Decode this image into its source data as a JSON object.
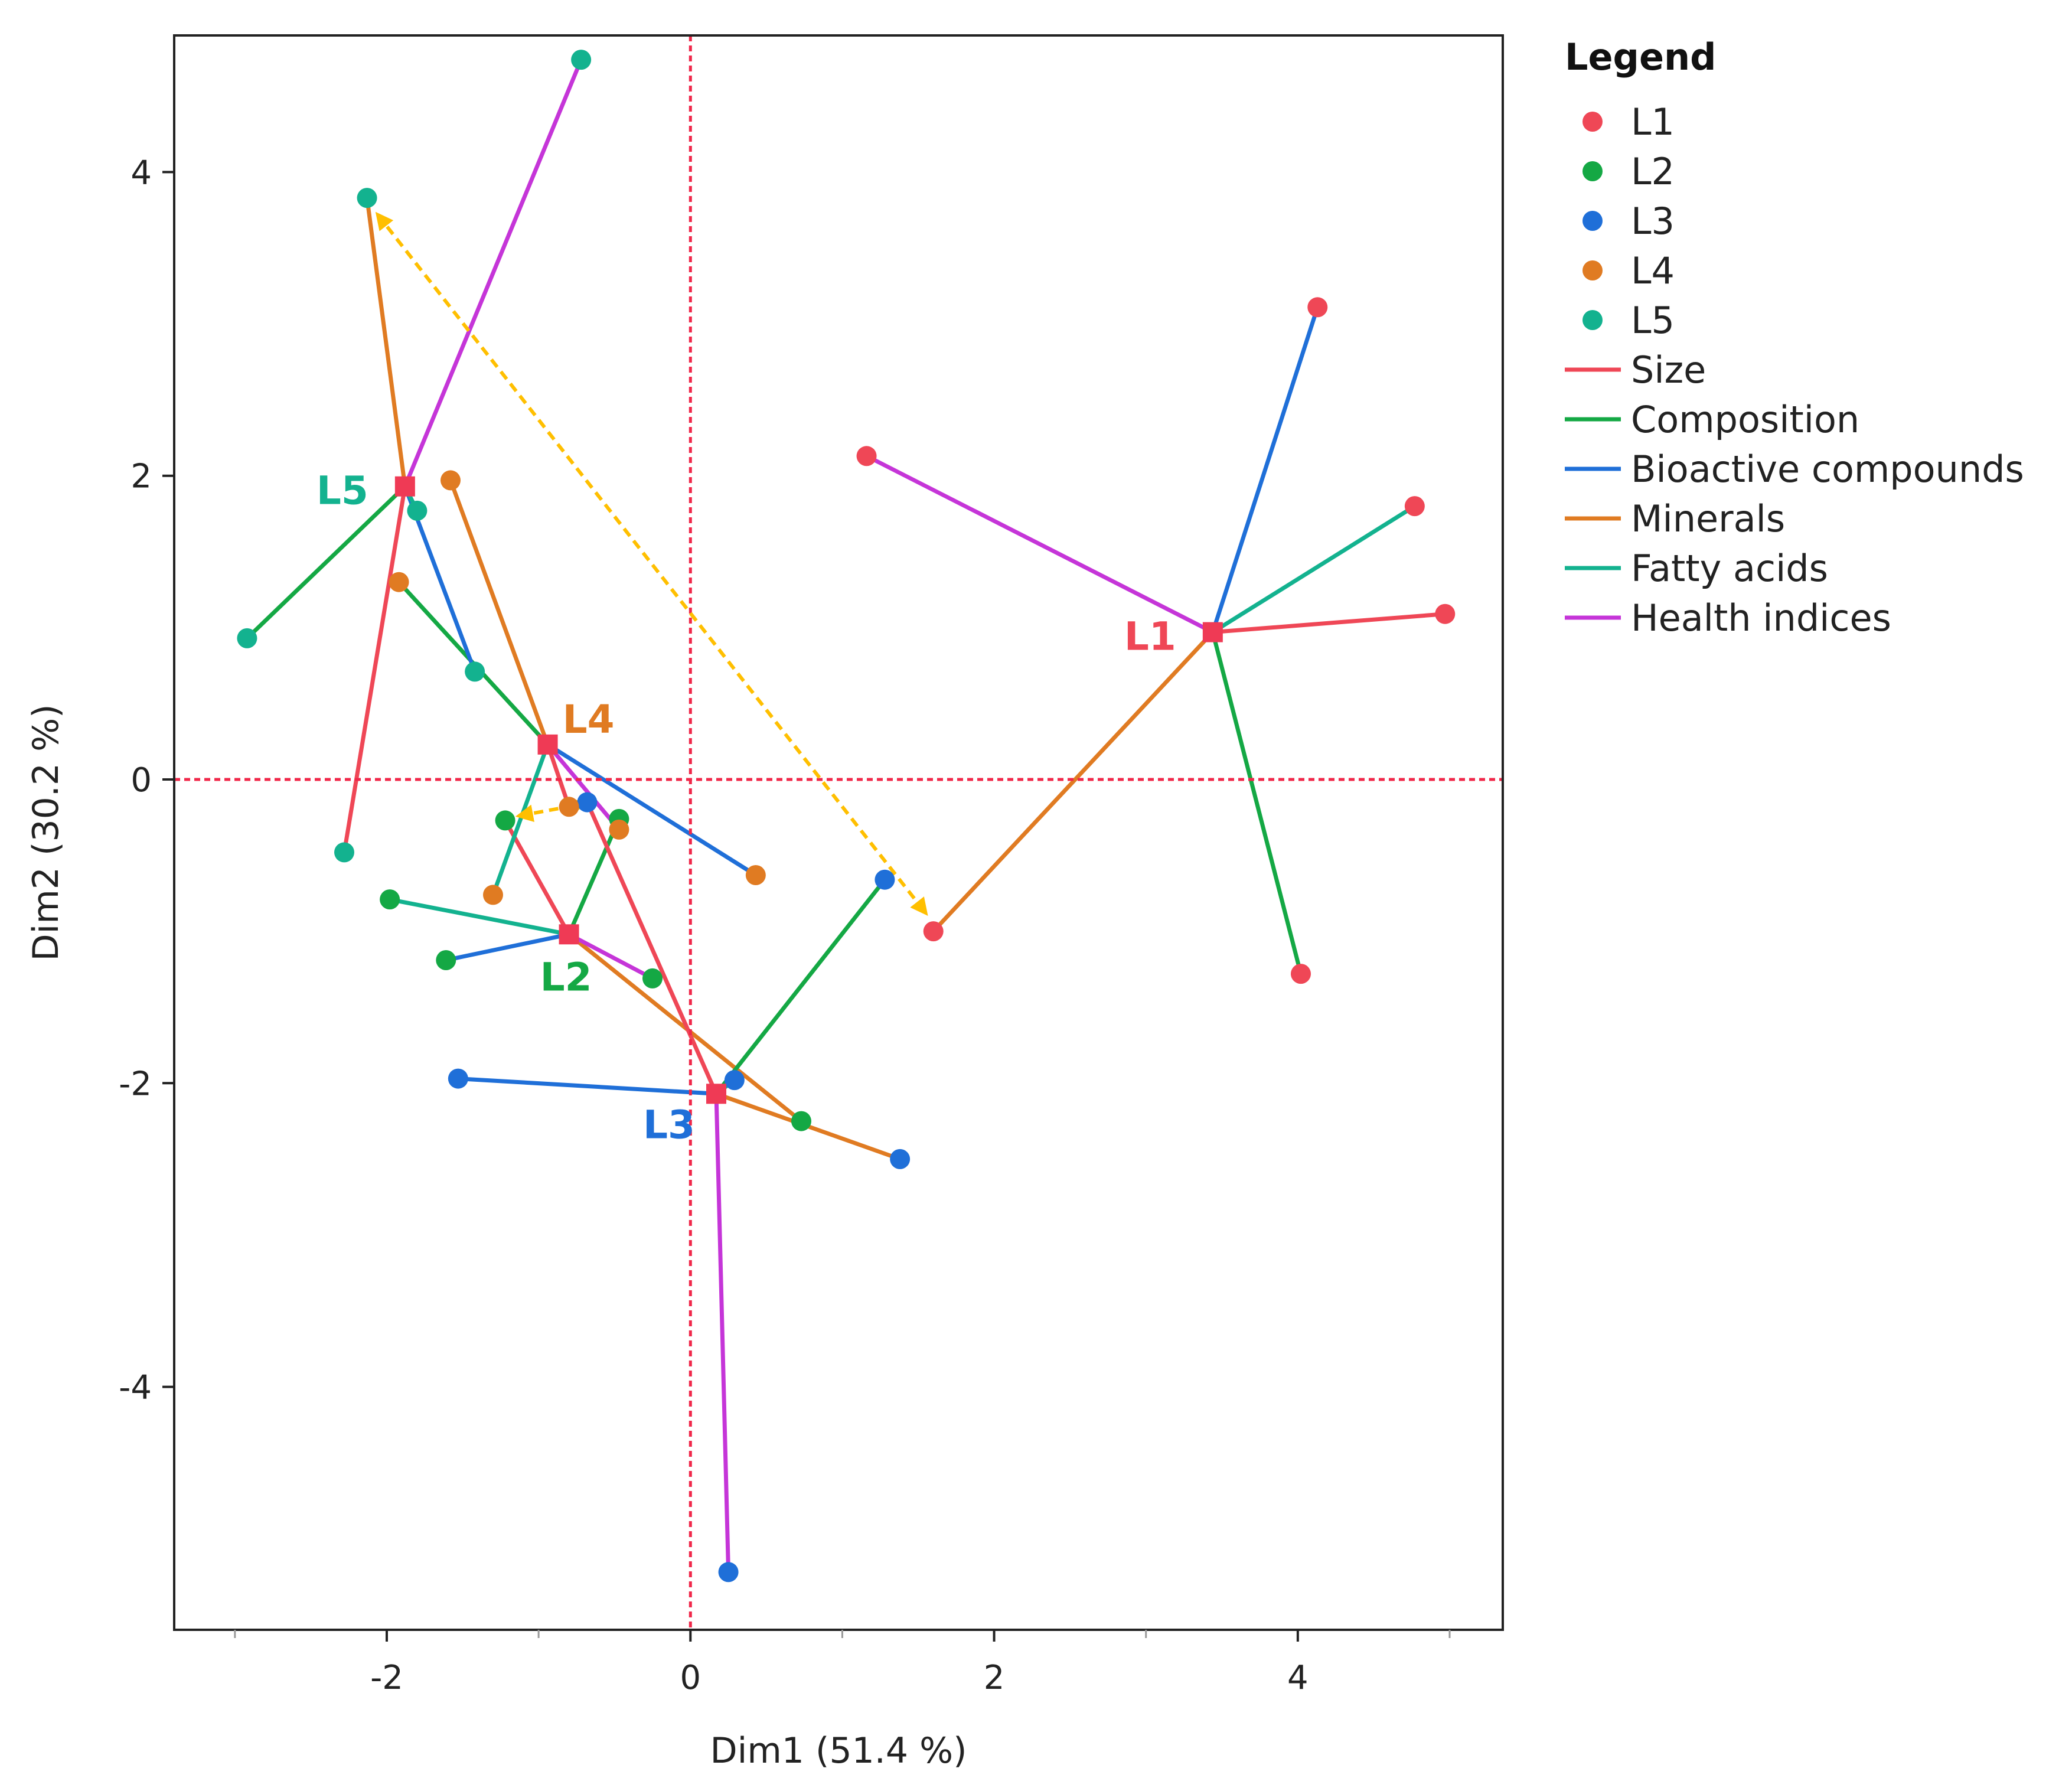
{
  "chart_data": {
    "type": "scatter",
    "xlabel": "Dim1  (51.4 %)",
    "ylabel": "Dim2  (30.2 %)",
    "xlim": [
      -3.4,
      5.35
    ],
    "ylim": [
      -5.6,
      4.9
    ],
    "x_ticks": [
      -2,
      0,
      2,
      4
    ],
    "x_tick_labels": [
      "-2",
      "0",
      "2",
      "4"
    ],
    "x_minor_ticks": [
      -3,
      -1,
      1,
      3,
      5
    ],
    "y_ticks": [
      -4,
      -2,
      0,
      2,
      4
    ],
    "y_tick_labels": [
      "-4",
      "-2",
      "0",
      "2",
      "4"
    ],
    "reference_lines": {
      "x": 0,
      "y": 0,
      "color": "#f0284a"
    },
    "legend": {
      "title": "Legend",
      "groups": [
        {
          "label": "L1",
          "color": "#ef4756"
        },
        {
          "label": "L2",
          "color": "#14a844"
        },
        {
          "label": "L3",
          "color": "#1f6fd8"
        },
        {
          "label": "L4",
          "color": "#e07b22"
        },
        {
          "label": "L5",
          "color": "#13b28f"
        }
      ],
      "tables": [
        {
          "label": "Size",
          "color": "#ef4756"
        },
        {
          "label": "Composition",
          "color": "#14a844"
        },
        {
          "label": "Bioactive compounds",
          "color": "#1f6fd8"
        },
        {
          "label": "Minerals",
          "color": "#e07b22"
        },
        {
          "label": "Fatty acids",
          "color": "#13b28f"
        },
        {
          "label": "Health indices",
          "color": "#c535d8"
        }
      ]
    },
    "centroids": [
      {
        "label": "L1",
        "x": 3.44,
        "y": 0.97,
        "color": "#ef4756",
        "label_pos": "left"
      },
      {
        "label": "L2",
        "x": -0.8,
        "y": -1.02,
        "color": "#14a844",
        "label_pos": "below"
      },
      {
        "label": "L3",
        "x": 0.17,
        "y": -2.07,
        "color": "#1f6fd8",
        "label_pos": "below-left"
      },
      {
        "label": "L4",
        "x": -0.94,
        "y": 0.23,
        "color": "#e07b22",
        "label_pos": "above-right"
      },
      {
        "label": "L5",
        "x": -1.88,
        "y": 1.93,
        "color": "#13b28f",
        "label_pos": "left"
      }
    ],
    "partial_points": [
      {
        "group": "L1",
        "table": "Size",
        "x": 4.97,
        "y": 1.09
      },
      {
        "group": "L1",
        "table": "Composition",
        "x": 4.02,
        "y": -1.28
      },
      {
        "group": "L1",
        "table": "Bioactive compounds",
        "x": 4.13,
        "y": 3.11
      },
      {
        "group": "L1",
        "table": "Minerals",
        "x": 1.6,
        "y": -1.0
      },
      {
        "group": "L1",
        "table": "Fatty acids",
        "x": 4.77,
        "y": 1.8
      },
      {
        "group": "L1",
        "table": "Health indices",
        "x": 1.16,
        "y": 2.13
      },
      {
        "group": "L2",
        "table": "Size",
        "x": -1.22,
        "y": -0.27
      },
      {
        "group": "L2",
        "table": "Composition",
        "x": -0.47,
        "y": -0.26
      },
      {
        "group": "L2",
        "table": "Bioactive compounds",
        "x": -1.61,
        "y": -1.19
      },
      {
        "group": "L2",
        "table": "Minerals",
        "x": 0.73,
        "y": -2.25
      },
      {
        "group": "L2",
        "table": "Fatty acids",
        "x": -1.98,
        "y": -0.79
      },
      {
        "group": "L2",
        "table": "Health indices",
        "x": -0.25,
        "y": -1.31
      },
      {
        "group": "L3",
        "table": "Size",
        "x": -0.68,
        "y": -0.15
      },
      {
        "group": "L3",
        "table": "Composition",
        "x": 1.28,
        "y": -0.66
      },
      {
        "group": "L3",
        "table": "Bioactive compounds",
        "x": -1.53,
        "y": -1.97
      },
      {
        "group": "L3",
        "table": "Minerals",
        "x": 1.38,
        "y": -2.5
      },
      {
        "group": "L3",
        "table": "Fatty acids",
        "x": 0.29,
        "y": -1.98
      },
      {
        "group": "L3",
        "table": "Health indices",
        "x": 0.25,
        "y": -5.22
      },
      {
        "group": "L4",
        "table": "Size",
        "x": -0.8,
        "y": -0.18
      },
      {
        "group": "L4",
        "table": "Composition",
        "x": -1.92,
        "y": 1.3
      },
      {
        "group": "L4",
        "table": "Bioactive compounds",
        "x": 0.43,
        "y": -0.63
      },
      {
        "group": "L4",
        "table": "Minerals",
        "x": -1.58,
        "y": 1.97
      },
      {
        "group": "L4",
        "table": "Fatty acids",
        "x": -1.3,
        "y": -0.76
      },
      {
        "group": "L4",
        "table": "Health indices",
        "x": -0.47,
        "y": -0.33
      },
      {
        "group": "L5",
        "table": "Size",
        "x": -2.28,
        "y": -0.48
      },
      {
        "group": "L5",
        "table": "Composition",
        "x": -2.92,
        "y": 0.93
      },
      {
        "group": "L5",
        "table": "Bioactive compounds",
        "x": -1.42,
        "y": 0.71
      },
      {
        "group": "L5",
        "table": "Minerals",
        "x": -2.13,
        "y": 3.83
      },
      {
        "group": "L5",
        "table": "Fatty acids",
        "x": -1.8,
        "y": 1.77
      },
      {
        "group": "L5",
        "table": "Health indices",
        "x": -0.72,
        "y": 4.74
      }
    ],
    "arrows": [
      {
        "from": [
          -2.06,
          3.72
        ],
        "to": [
          1.55,
          -0.88
        ],
        "color": "#ffbf00",
        "double": true
      },
      {
        "from": [
          -1.13,
          -0.24
        ],
        "to": [
          -0.7,
          -0.16
        ],
        "color": "#ffbf00",
        "double": true
      }
    ]
  }
}
